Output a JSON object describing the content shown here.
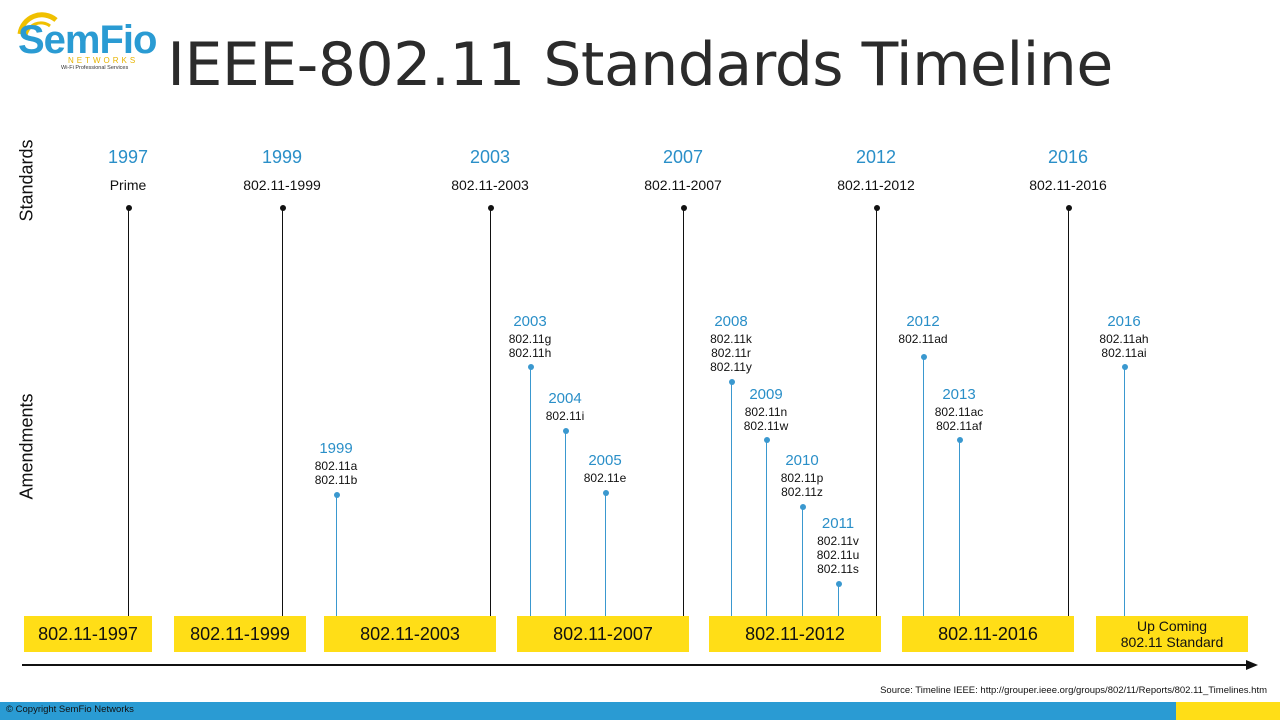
{
  "logo": {
    "name": "SemFio",
    "sub": "NETWORKS",
    "tagline": "Wi-Fi Professional Services"
  },
  "title": "IEEE-802.11 Standards Timeline",
  "side_labels": {
    "standards": "Standards",
    "amendments": "Amendments"
  },
  "standards": [
    {
      "year": "1997",
      "name": "Prime"
    },
    {
      "year": "1999",
      "name": "802.11-1999"
    },
    {
      "year": "2003",
      "name": "802.11-2003"
    },
    {
      "year": "2007",
      "name": "802.11-2007"
    },
    {
      "year": "2012",
      "name": "802.11-2012"
    },
    {
      "year": "2016",
      "name": "802.11-2016"
    }
  ],
  "amendments": [
    {
      "year": "1999",
      "items": [
        "802.11a",
        "802.11b"
      ]
    },
    {
      "year": "2003",
      "items": [
        "802.11g",
        "802.11h"
      ]
    },
    {
      "year": "2004",
      "items": [
        "802.11i"
      ]
    },
    {
      "year": "2005",
      "items": [
        "802.11e"
      ]
    },
    {
      "year": "2008",
      "items": [
        "802.11k",
        "802.11r",
        "802.11y"
      ]
    },
    {
      "year": "2009",
      "items": [
        "802.11n",
        "802.11w"
      ]
    },
    {
      "year": "2010",
      "items": [
        "802.11p",
        "802.11z"
      ]
    },
    {
      "year": "2011",
      "items": [
        "802.11v",
        "802.11u",
        "802.11s"
      ]
    },
    {
      "year": "2012",
      "items": [
        "802.11ad"
      ]
    },
    {
      "year": "2013",
      "items": [
        "802.11ac",
        "802.11af"
      ]
    },
    {
      "year": "2016",
      "items": [
        "802.11ah",
        "802.11ai"
      ]
    }
  ],
  "boxes": [
    {
      "label": "802.11-1997"
    },
    {
      "label": "802.11-1999"
    },
    {
      "label": "802.11-2003"
    },
    {
      "label": "802.11-2007"
    },
    {
      "label": "802.11-2012"
    },
    {
      "label": "802.11-2016"
    },
    {
      "label_line1": "Up Coming",
      "label_line2": "802.11 Standard"
    }
  ],
  "source": "Source: Timeline IEEE: http://grouper.ieee.org/groups/802/11/Reports/802.11_Timelines.htm",
  "copyright": "© Copyright SemFio Networks",
  "colors": {
    "accent_blue": "#2a9bd3",
    "highlight_yellow": "#ffde17",
    "text_dark": "#111111"
  }
}
